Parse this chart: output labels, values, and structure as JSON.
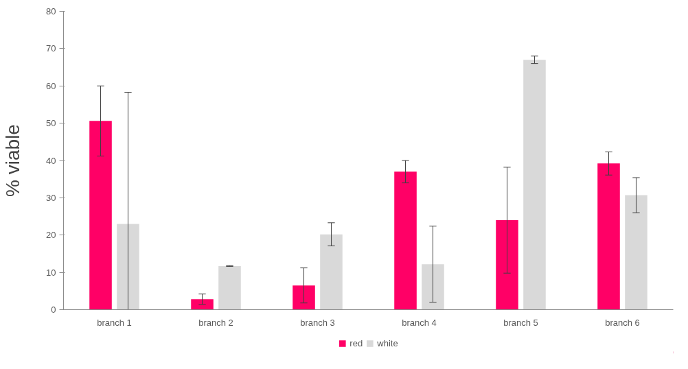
{
  "chart_data": {
    "type": "bar",
    "ylabel": "% viable",
    "categories": [
      "branch 1",
      "branch 2",
      "branch 3",
      "branch 4",
      "branch 5",
      "branch 6"
    ],
    "series": [
      {
        "name": "red",
        "color": "#ff0066",
        "values": [
          50.6,
          2.8,
          6.5,
          37.0,
          24.0,
          39.2
        ],
        "errors": [
          9.4,
          1.4,
          4.7,
          3.0,
          14.2,
          3.1
        ]
      },
      {
        "name": "white",
        "color": "#d9d9d9",
        "values": [
          23.0,
          11.7,
          20.2,
          12.2,
          67.0,
          30.7
        ],
        "errors": [
          [
            0,
            58.3
          ],
          0.1,
          3.1,
          10.2,
          1.0,
          4.7
        ]
      }
    ],
    "ylim": [
      0,
      80
    ],
    "yticks": [
      0,
      10,
      20,
      30,
      40,
      50,
      60,
      70,
      80
    ],
    "grid": false,
    "legend": "bottom"
  }
}
